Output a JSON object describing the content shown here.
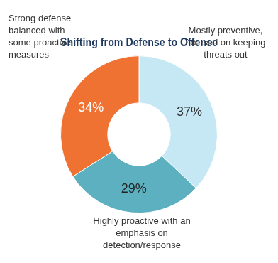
{
  "chart_data": {
    "type": "doughnut",
    "title": "Shifting from Defense to Offense",
    "categories": [
      "Mostly preventive, focused on keeping threats out",
      "Highly proactive with an emphasis on detection/response",
      "Strong defense balanced with some proactive measures"
    ],
    "values": [
      37,
      29,
      34
    ],
    "value_labels": [
      "37%",
      "29%",
      "34%"
    ],
    "colors": [
      "#c6e8f4",
      "#5cb0c0",
      "#f07232"
    ],
    "data_labels": true
  }
}
